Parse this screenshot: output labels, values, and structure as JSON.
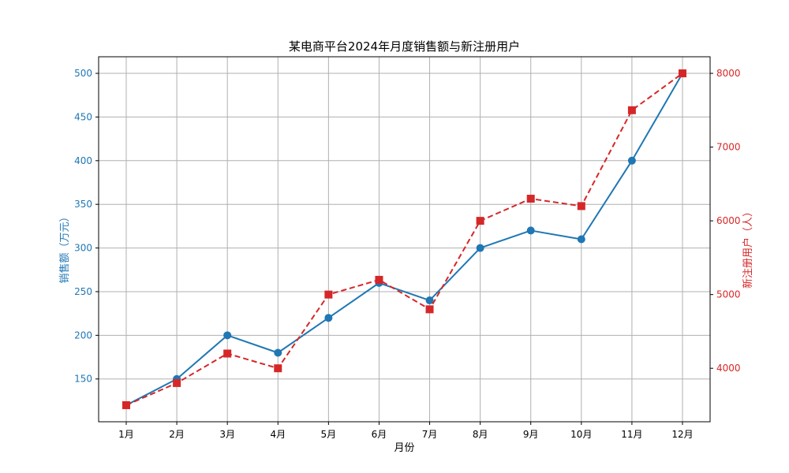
{
  "chart_data": {
    "type": "line",
    "title": "某电商平台2024年月度销售额与新注册用户",
    "xlabel": "月份",
    "ylabel_left": "销售额（万元）",
    "ylabel_right": "新注册用户（人）",
    "categories": [
      "1月",
      "2月",
      "3月",
      "4月",
      "5月",
      "6月",
      "7月",
      "8月",
      "9月",
      "10月",
      "11月",
      "12月"
    ],
    "series": [
      {
        "axis": "left",
        "color": "#1f77b4",
        "line_style": "solid",
        "marker": "circle",
        "values": [
          120,
          150,
          200,
          180,
          220,
          260,
          240,
          300,
          320,
          310,
          400,
          500
        ]
      },
      {
        "axis": "right",
        "color": "#d62728",
        "line_style": "dashed",
        "marker": "square",
        "values": [
          3500,
          3800,
          4200,
          4000,
          5000,
          5200,
          4800,
          6000,
          6300,
          6200,
          7500,
          8000
        ]
      }
    ],
    "ylim_left": [
      101,
      519
    ],
    "yticks_left": [
      150,
      200,
      250,
      300,
      350,
      400,
      450,
      500
    ],
    "ylim_right": [
      3275,
      8225
    ],
    "yticks_right": [
      4000,
      5000,
      6000,
      7000,
      8000
    ],
    "grid": true,
    "legend": "none"
  }
}
